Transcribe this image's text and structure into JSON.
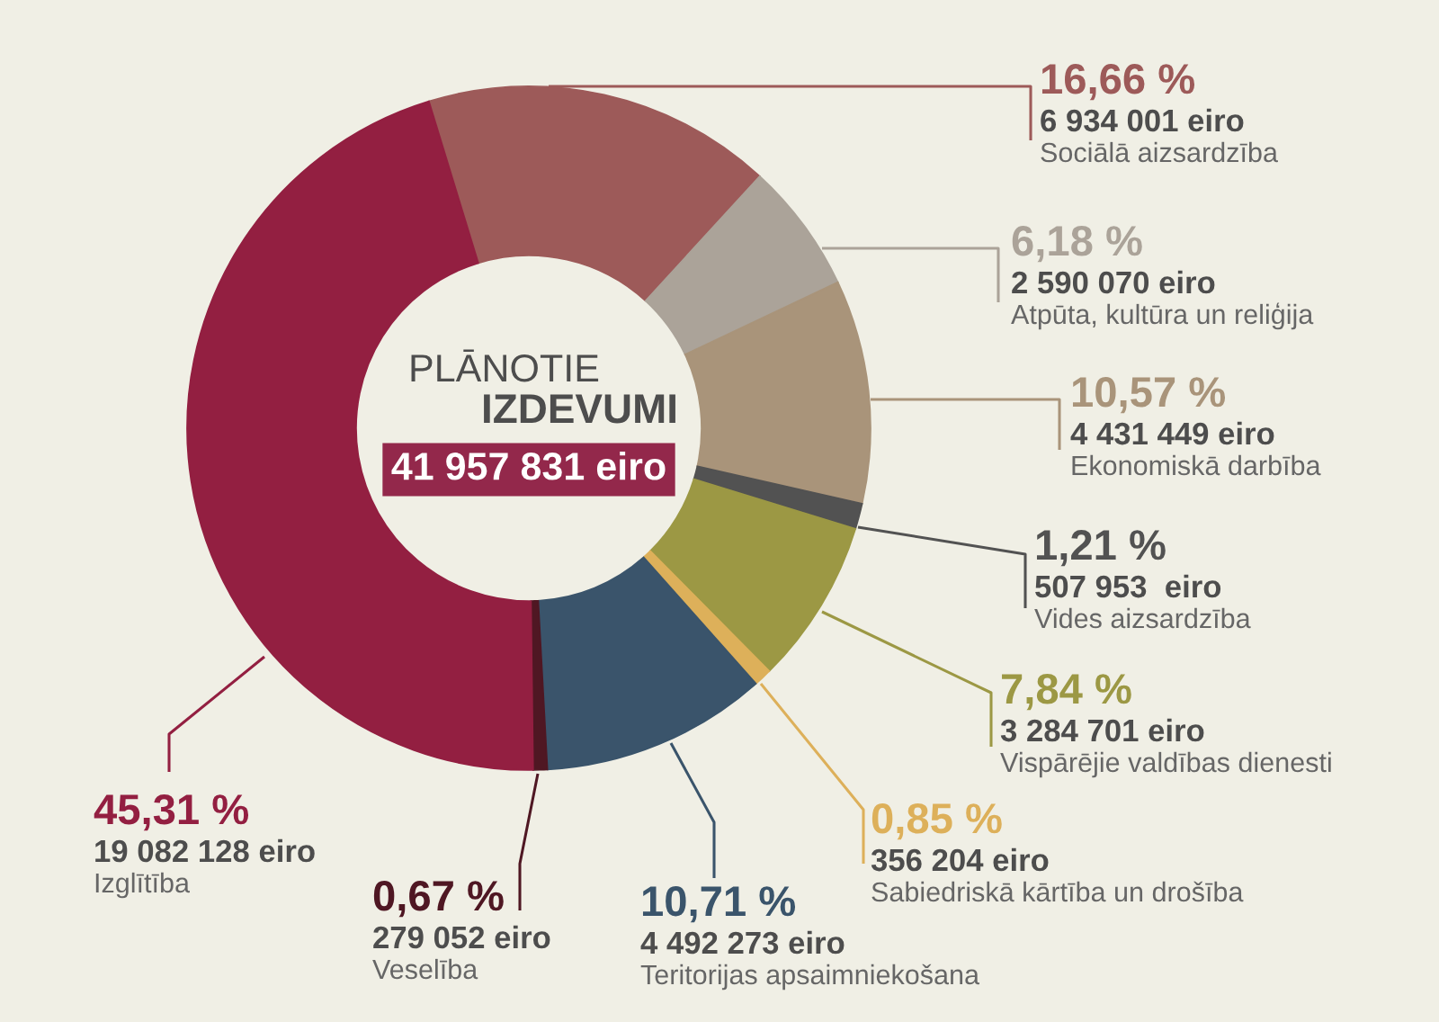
{
  "chart_data": {
    "type": "donut",
    "title": "PLĀNOTIE\nIZDEVUMI",
    "annotations": [
      "41 957 831 eiro"
    ],
    "categories": [
      "Sociālā aizsardzība",
      "Atpūta, kultūra un reliģija",
      "Ekonomiskā darbība",
      "Vides aizsardzība",
      "Vispārējie valdības dienesti",
      "Sabiedriskā kārtība un drošība",
      "Teritorijas apsaimniekošana",
      "Veselība",
      "Izglītība"
    ],
    "values": [
      6934001,
      2590070,
      4431449,
      507953,
      3284701,
      356204,
      4492273,
      279052,
      19082128
    ],
    "value_labels": [
      "16,66 %\n6 934 001 eiro",
      "6,18 %\n2 590 070 eiro",
      "10,57 %\n4 431 449 eiro",
      "1,21 %\n507 953  eiro",
      "7,84 %\n3 284 701 eiro",
      "0,85 %\n356 204 eiro",
      "10,71 %\n4 492 273 eiro",
      "0,67 %\n279 052 eiro",
      "45,31 %\n19 082 128 eiro"
    ],
    "colors": [
      "#9d5a59",
      "#aba399",
      "#a9947a",
      "#525252",
      "#9c9844",
      "#ddb05a",
      "#3a546b",
      "#4f1723",
      "#931f41"
    ]
  }
}
